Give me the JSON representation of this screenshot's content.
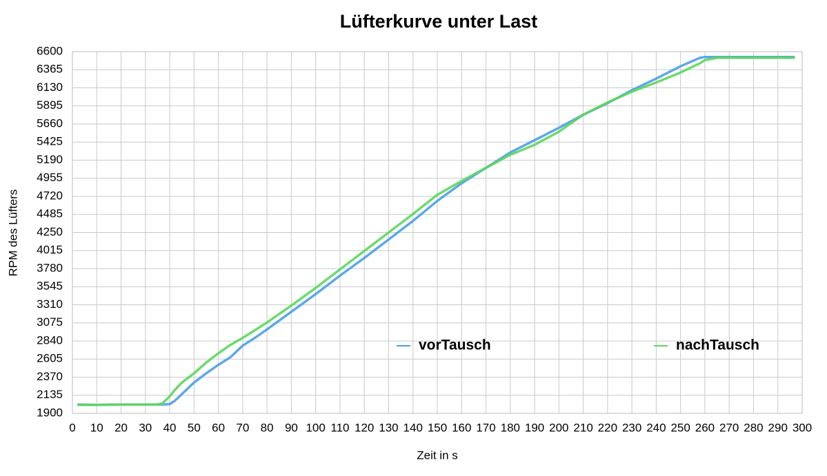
{
  "chart_data": {
    "type": "line",
    "title": "Lüfterkurve unter Last",
    "x_label": "Zeit in s",
    "y_label": "RPM des Lüfters",
    "x": [
      2,
      10,
      20,
      30,
      35,
      37,
      40,
      42,
      45,
      50,
      55,
      60,
      65,
      70,
      75,
      80,
      90,
      100,
      110,
      120,
      130,
      140,
      150,
      160,
      170,
      180,
      190,
      200,
      210,
      220,
      230,
      240,
      250,
      258,
      260,
      265,
      270,
      280,
      290,
      297
    ],
    "series": [
      {
        "name": "vorTausch",
        "color": "#4a9ee8",
        "values": [
          2015,
          2010,
          2015,
          2015,
          2015,
          2015,
          2020,
          2060,
          2150,
          2300,
          2420,
          2530,
          2630,
          2780,
          2880,
          2990,
          3220,
          3450,
          3690,
          3920,
          4160,
          4400,
          4660,
          4890,
          5090,
          5290,
          5450,
          5610,
          5780,
          5930,
          6100,
          6250,
          6410,
          6520,
          6530,
          6530,
          6530,
          6530,
          6530,
          6530
        ]
      },
      {
        "name": "nachTausch",
        "color": "#5cd65c",
        "values": [
          2010,
          2010,
          2015,
          2015,
          2015,
          2030,
          2120,
          2200,
          2300,
          2420,
          2560,
          2680,
          2790,
          2880,
          2980,
          3080,
          3300,
          3530,
          3770,
          4010,
          4250,
          4490,
          4740,
          4920,
          5090,
          5260,
          5390,
          5560,
          5780,
          5940,
          6080,
          6200,
          6330,
          6450,
          6490,
          6520,
          6520,
          6520,
          6520,
          6520
        ]
      }
    ],
    "xlim": [
      0,
      300
    ],
    "xticks": [
      0,
      10,
      20,
      30,
      40,
      50,
      60,
      70,
      80,
      90,
      100,
      110,
      120,
      130,
      140,
      150,
      160,
      170,
      180,
      190,
      200,
      210,
      220,
      230,
      240,
      250,
      260,
      270,
      280,
      290,
      300
    ],
    "ylim": [
      1900,
      6600
    ],
    "yticks": [
      1900,
      2135,
      2370,
      2605,
      2840,
      3075,
      3310,
      3545,
      3780,
      4015,
      4250,
      4485,
      4720,
      4955,
      5190,
      5425,
      5660,
      5895,
      6130,
      6365,
      6600
    ],
    "grid": true
  }
}
